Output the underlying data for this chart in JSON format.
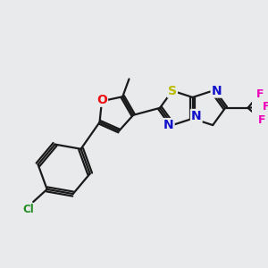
{
  "bg_color": "#e8eaec",
  "bond_color": "#1a1a1a",
  "atom_colors": {
    "O": "#ee1111",
    "N": "#1111cc",
    "S": "#bbbb00",
    "Cl": "#228B22",
    "F": "#ee00bb",
    "C": "#1a1a1a"
  },
  "figsize": [
    3.0,
    3.0
  ],
  "dpi": 100
}
